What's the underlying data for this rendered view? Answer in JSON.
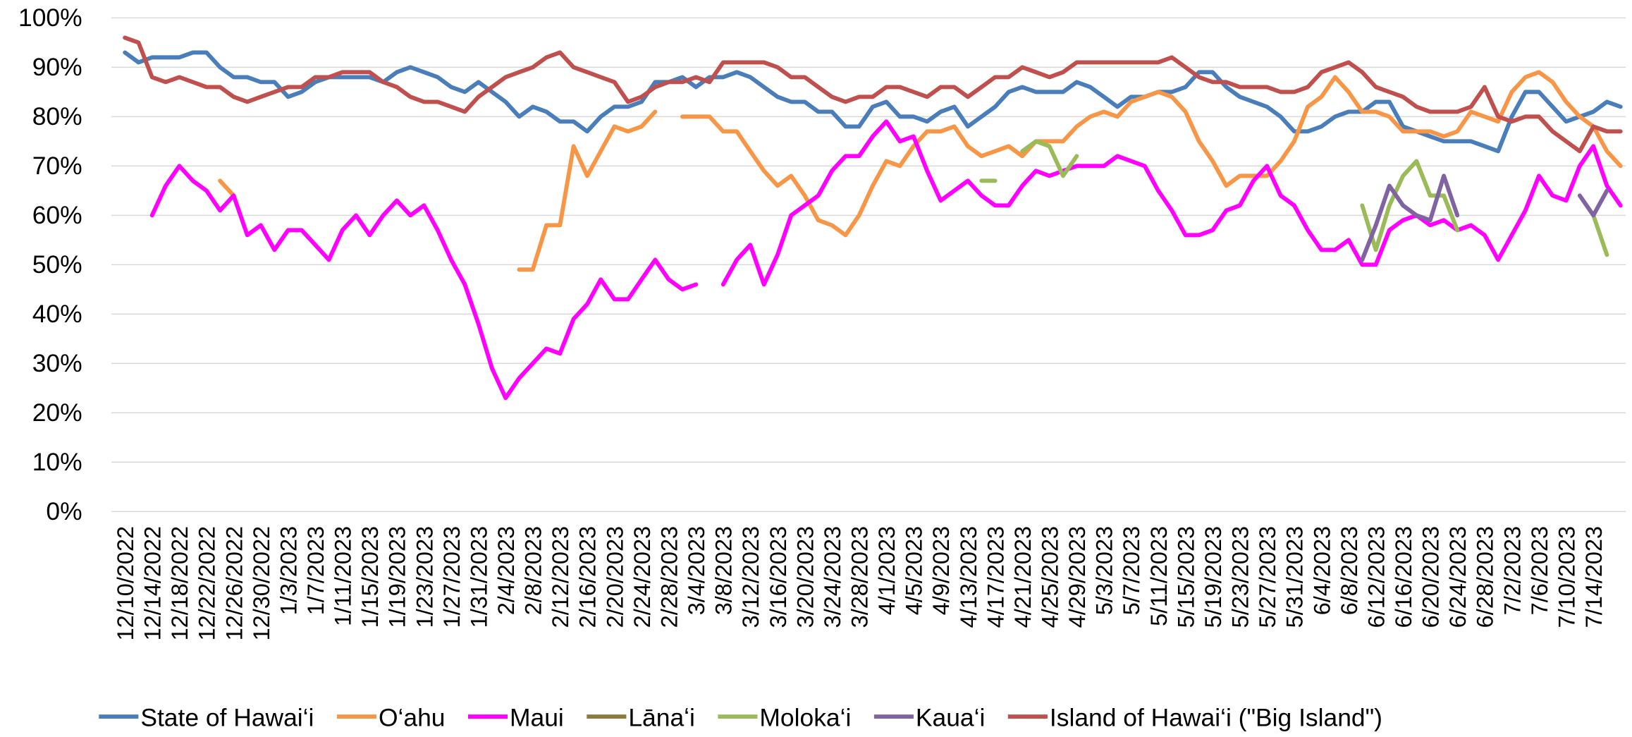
{
  "chart_data": {
    "type": "line",
    "categories": [
      "12/10/2022",
      null,
      "12/14/2022",
      null,
      "12/18/2022",
      null,
      "12/22/2022",
      null,
      "12/26/2022",
      null,
      "12/30/2022",
      null,
      "1/3/2023",
      null,
      "1/7/2023",
      null,
      "1/11/2023",
      null,
      "1/15/2023",
      null,
      "1/19/2023",
      null,
      "1/23/2023",
      null,
      "1/27/2023",
      null,
      "1/31/2023",
      null,
      "2/4/2023",
      null,
      "2/8/2023",
      null,
      "2/12/2023",
      null,
      "2/16/2023",
      null,
      "2/20/2023",
      null,
      "2/24/2023",
      null,
      "2/28/2023",
      null,
      "3/4/2023",
      null,
      "3/8/2023",
      null,
      "3/12/2023",
      null,
      "3/16/2023",
      null,
      "3/20/2023",
      null,
      "3/24/2023",
      null,
      "3/28/2023",
      null,
      "4/1/2023",
      null,
      "4/5/2023",
      null,
      "4/9/2023",
      null,
      "4/13/2023",
      null,
      "4/17/2023",
      null,
      "4/21/2023",
      null,
      "4/25/2023",
      null,
      "4/29/2023",
      null,
      "5/3/2023",
      null,
      "5/7/2023",
      null,
      "5/11/2023",
      null,
      "5/15/2023",
      null,
      "5/19/2023",
      null,
      "5/23/2023",
      null,
      "5/27/2023",
      null,
      "5/31/2023",
      null,
      "6/4/2023",
      null,
      "6/8/2023",
      null,
      "6/12/2023",
      null,
      "6/16/2023",
      null,
      "6/20/2023",
      null,
      "6/24/2023",
      null,
      "6/28/2023",
      null,
      "7/2/2023",
      null,
      "7/6/2023",
      null,
      "7/10/2023",
      null,
      "7/14/2023",
      null,
      null
    ],
    "series": [
      {
        "name": "State of Hawai‘i",
        "color": "#4a7ebb",
        "values": [
          93,
          91,
          92,
          92,
          92,
          93,
          93,
          90,
          88,
          88,
          87,
          87,
          84,
          85,
          87,
          88,
          88,
          88,
          88,
          87,
          89,
          90,
          89,
          88,
          86,
          85,
          87,
          85,
          83,
          80,
          82,
          81,
          79,
          79,
          77,
          80,
          82,
          82,
          83,
          87,
          87,
          88,
          86,
          88,
          88,
          89,
          88,
          86,
          84,
          83,
          83,
          81,
          81,
          78,
          78,
          82,
          83,
          80,
          80,
          79,
          81,
          82,
          78,
          80,
          82,
          85,
          86,
          85,
          85,
          85,
          87,
          86,
          84,
          82,
          84,
          84,
          85,
          85,
          86,
          89,
          89,
          86,
          84,
          83,
          82,
          80,
          77,
          77,
          78,
          80,
          81,
          81,
          83,
          83,
          78,
          77,
          76,
          75,
          75,
          75,
          74,
          73,
          80,
          85,
          85,
          82,
          79,
          80,
          81,
          83,
          82
        ]
      },
      {
        "name": "O‘ahu",
        "color": "#f79646",
        "values": [
          null,
          null,
          null,
          null,
          null,
          null,
          null,
          67,
          64,
          null,
          null,
          null,
          null,
          null,
          null,
          null,
          null,
          null,
          null,
          null,
          null,
          null,
          null,
          null,
          null,
          null,
          null,
          null,
          null,
          49,
          49,
          58,
          58,
          74,
          68,
          73,
          78,
          77,
          78,
          81,
          null,
          80,
          80,
          80,
          77,
          77,
          73,
          69,
          66,
          68,
          64,
          59,
          58,
          56,
          60,
          66,
          71,
          70,
          74,
          77,
          77,
          78,
          74,
          72,
          73,
          74,
          72,
          75,
          75,
          75,
          78,
          80,
          81,
          80,
          83,
          84,
          85,
          84,
          81,
          75,
          71,
          66,
          68,
          68,
          68,
          71,
          75,
          82,
          84,
          88,
          85,
          81,
          81,
          80,
          77,
          77,
          77,
          76,
          77,
          81,
          80,
          79,
          85,
          88,
          89,
          87,
          83,
          80,
          78,
          73,
          70
        ]
      },
      {
        "name": "Maui",
        "color": "#ff00ff",
        "values": [
          null,
          null,
          60,
          66,
          70,
          67,
          65,
          61,
          64,
          56,
          58,
          53,
          57,
          57,
          54,
          51,
          57,
          60,
          56,
          60,
          63,
          60,
          62,
          57,
          51,
          46,
          38,
          29,
          23,
          27,
          30,
          33,
          32,
          39,
          42,
          47,
          43,
          43,
          47,
          51,
          47,
          45,
          46,
          null,
          46,
          51,
          54,
          46,
          52,
          60,
          62,
          64,
          69,
          72,
          72,
          76,
          79,
          75,
          76,
          69,
          63,
          65,
          67,
          64,
          62,
          62,
          66,
          69,
          68,
          69,
          70,
          70,
          70,
          72,
          71,
          70,
          65,
          61,
          56,
          56,
          57,
          61,
          62,
          67,
          70,
          64,
          62,
          57,
          53,
          53,
          55,
          50,
          50,
          57,
          59,
          60,
          58,
          59,
          57,
          58,
          56,
          51,
          56,
          61,
          68,
          64,
          63,
          70,
          74,
          66,
          62
        ]
      },
      {
        "name": "Lānaʻi",
        "color": "#8c7a3e",
        "values": [
          null,
          null,
          null,
          null,
          null,
          null,
          null,
          null,
          null,
          null,
          null,
          null,
          null,
          null,
          null,
          null,
          null,
          null,
          null,
          null,
          null,
          null,
          null,
          null,
          null,
          null,
          null,
          null,
          null,
          null,
          null,
          null,
          null,
          null,
          null,
          null,
          null,
          null,
          null,
          null,
          null,
          null,
          null,
          null,
          null,
          null,
          null,
          null,
          null,
          null,
          null,
          null,
          null,
          null,
          null,
          null,
          null,
          null,
          null,
          null,
          null,
          null,
          null,
          null,
          null,
          null,
          null,
          null,
          null,
          null,
          null,
          null,
          null,
          null,
          null,
          null,
          null,
          null,
          null,
          null,
          null,
          null,
          null,
          null,
          null,
          null,
          null,
          null,
          null,
          null,
          null,
          null,
          null,
          null,
          null,
          null,
          null,
          null,
          null,
          null,
          null,
          null,
          null,
          null,
          null,
          null,
          null,
          null,
          null,
          null,
          null
        ]
      },
      {
        "name": "Moloka‘i",
        "color": "#9bbb59",
        "values": [
          null,
          null,
          null,
          null,
          null,
          null,
          null,
          null,
          null,
          null,
          null,
          null,
          null,
          null,
          null,
          null,
          null,
          null,
          null,
          null,
          null,
          null,
          null,
          null,
          null,
          null,
          null,
          null,
          null,
          null,
          null,
          null,
          null,
          null,
          null,
          null,
          null,
          null,
          null,
          null,
          null,
          null,
          null,
          null,
          null,
          null,
          null,
          null,
          null,
          null,
          null,
          null,
          null,
          null,
          null,
          null,
          null,
          null,
          null,
          null,
          null,
          null,
          null,
          67,
          67,
          null,
          73,
          75,
          74,
          68,
          72,
          null,
          null,
          null,
          null,
          null,
          null,
          null,
          null,
          null,
          null,
          null,
          null,
          null,
          null,
          null,
          null,
          null,
          null,
          null,
          null,
          62,
          53,
          62,
          68,
          71,
          64,
          64,
          57,
          null,
          null,
          null,
          null,
          null,
          null,
          null,
          null,
          null,
          60,
          52,
          null
        ]
      },
      {
        "name": "Kaua‘i",
        "color": "#8064a2",
        "values": [
          null,
          null,
          null,
          null,
          null,
          null,
          null,
          null,
          null,
          null,
          null,
          null,
          null,
          null,
          null,
          null,
          null,
          null,
          null,
          null,
          null,
          null,
          null,
          null,
          null,
          null,
          null,
          null,
          null,
          null,
          null,
          null,
          null,
          null,
          null,
          null,
          null,
          null,
          null,
          null,
          null,
          null,
          null,
          null,
          null,
          null,
          null,
          null,
          null,
          null,
          null,
          null,
          null,
          null,
          null,
          null,
          null,
          null,
          null,
          null,
          null,
          null,
          null,
          null,
          null,
          null,
          null,
          null,
          null,
          null,
          null,
          null,
          null,
          null,
          null,
          null,
          null,
          null,
          null,
          null,
          null,
          null,
          null,
          null,
          null,
          null,
          null,
          null,
          null,
          null,
          null,
          51,
          58,
          66,
          62,
          60,
          59,
          68,
          60,
          null,
          null,
          null,
          null,
          null,
          null,
          null,
          null,
          64,
          60,
          65,
          null
        ]
      },
      {
        "name": "Island of Hawai‘i (\"Big Island\")",
        "color": "#c0504d",
        "values": [
          96,
          95,
          88,
          87,
          88,
          87,
          86,
          86,
          84,
          83,
          84,
          85,
          86,
          86,
          88,
          88,
          89,
          89,
          89,
          87,
          86,
          84,
          83,
          83,
          82,
          81,
          84,
          86,
          88,
          89,
          90,
          92,
          93,
          90,
          89,
          88,
          87,
          83,
          84,
          86,
          87,
          87,
          88,
          87,
          91,
          91,
          91,
          91,
          90,
          88,
          88,
          86,
          84,
          83,
          84,
          84,
          86,
          86,
          85,
          84,
          86,
          86,
          84,
          86,
          88,
          88,
          90,
          89,
          88,
          89,
          91,
          91,
          91,
          91,
          91,
          91,
          91,
          92,
          90,
          88,
          87,
          87,
          86,
          86,
          86,
          85,
          85,
          86,
          89,
          90,
          91,
          89,
          86,
          85,
          84,
          82,
          81,
          81,
          81,
          82,
          86,
          80,
          79,
          80,
          80,
          77,
          75,
          73,
          78,
          77,
          77
        ]
      }
    ],
    "ylim": [
      0,
      100
    ],
    "yticks": [
      {
        "value": 0,
        "label": "0%"
      },
      {
        "value": 10,
        "label": "10%"
      },
      {
        "value": 20,
        "label": "20%"
      },
      {
        "value": 30,
        "label": "30%"
      },
      {
        "value": 40,
        "label": "40%"
      },
      {
        "value": 50,
        "label": "50%"
      },
      {
        "value": 60,
        "label": "60%"
      },
      {
        "value": 70,
        "label": "70%"
      },
      {
        "value": 80,
        "label": "80%"
      },
      {
        "value": 90,
        "label": "90%"
      },
      {
        "value": 100,
        "label": "100%"
      }
    ],
    "grid": true,
    "legend": "bottom"
  }
}
